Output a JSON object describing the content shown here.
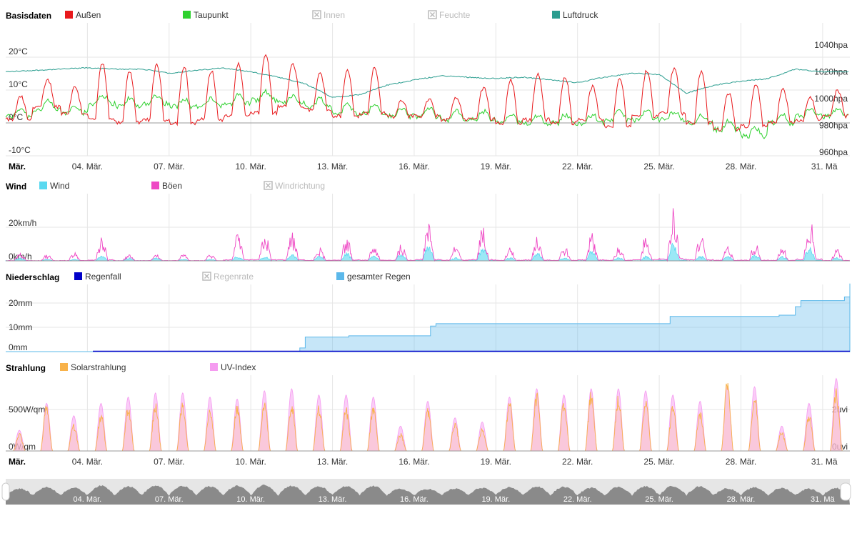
{
  "colors": {
    "aussen": "#e8191c",
    "taupunkt": "#2ed12e",
    "luftdruck": "#2a9d8f",
    "wind": "#5ad9f0",
    "boeen": "#ee47c4",
    "regenfall": "#0000c8",
    "gesamter_regen": "#5bb8ea",
    "solar": "#f8b24a",
    "uv": "#f59bf0",
    "disabled": "#bbbbbb",
    "grid": "#e6e6e6"
  },
  "x_axis": {
    "month_label": "Mär.",
    "dates": [
      "04. Mär.",
      "07. Mär.",
      "10. Mär.",
      "13. Mär.",
      "16. Mär.",
      "19. Mär.",
      "22. Mär.",
      "25. Mär.",
      "28. Mär.",
      "31. Mä"
    ]
  },
  "chart_data": [
    {
      "type": "line",
      "title": "Basisdaten",
      "legend": [
        {
          "name": "Außen",
          "color": "#e8191c",
          "enabled": true
        },
        {
          "name": "Taupunkt",
          "color": "#2ed12e",
          "enabled": true
        },
        {
          "name": "Innen",
          "color": "#bbbbbb",
          "enabled": false
        },
        {
          "name": "Feuchte",
          "color": "#bbbbbb",
          "enabled": false
        },
        {
          "name": "Luftdruck",
          "color": "#2a9d8f",
          "enabled": true
        }
      ],
      "y_ticks_left": [
        "20°C",
        "10°C",
        "0°C",
        "-10°C"
      ],
      "y_ticks_right": [
        "1040hpa",
        "1020hpa",
        "1000hpa",
        "980hpa",
        "960hpa"
      ],
      "ylim_temp": [
        -10,
        30
      ],
      "ylim_pressure": [
        960,
        1060
      ],
      "x_days": [
        1,
        32
      ],
      "series": [
        {
          "name": "Außen",
          "unit": "°C",
          "daily_max": [
            8,
            13,
            11,
            18,
            16,
            18,
            17,
            16,
            18,
            21,
            18,
            15,
            16,
            17,
            7,
            7,
            8,
            11,
            13,
            15,
            14,
            11,
            14,
            16,
            17,
            16,
            9,
            12,
            10,
            8,
            10
          ],
          "daily_min": [
            1,
            5,
            3,
            1,
            0,
            1,
            0,
            1,
            2,
            3,
            5,
            4,
            2,
            3,
            2,
            2,
            1,
            1,
            0,
            1,
            0,
            1,
            -1,
            2,
            3,
            0,
            -2,
            -1,
            0,
            1,
            2
          ]
        },
        {
          "name": "Taupunkt",
          "unit": "°C",
          "approx_level": [
            2,
            4,
            3,
            6,
            5,
            6,
            5,
            5,
            6,
            7,
            6,
            5,
            3,
            3,
            2,
            2,
            1,
            1,
            0,
            0,
            0,
            0,
            1,
            1,
            1,
            0,
            -2,
            -4,
            0,
            2,
            2
          ]
        },
        {
          "name": "Luftdruck",
          "unit": "hpa",
          "daily": [
            1020,
            1021,
            1022,
            1023,
            1022,
            1022,
            1019,
            1021,
            1023,
            1020,
            1016,
            1011,
            1001,
            1003,
            1010,
            1014,
            1017,
            1016,
            1015,
            1016,
            1014,
            1012,
            1016,
            1019,
            1018,
            1004,
            1010,
            1013,
            1015,
            1022,
            1020
          ]
        }
      ]
    },
    {
      "type": "area",
      "title": "Wind",
      "legend": [
        {
          "name": "Wind",
          "color": "#5ad9f0",
          "enabled": true
        },
        {
          "name": "Böen",
          "color": "#ee47c4",
          "enabled": true
        },
        {
          "name": "Windrichtung",
          "color": "#bbbbbb",
          "enabled": false
        }
      ],
      "y_ticks_left": [
        "20km/h",
        "0km/h"
      ],
      "ylim": [
        0,
        32
      ],
      "series": [
        {
          "name": "Wind",
          "unit": "km/h",
          "daily_peak": [
            2,
            1,
            1,
            3,
            2,
            2,
            1,
            1,
            3,
            3,
            4,
            3,
            5,
            3,
            5,
            9,
            2,
            8,
            2,
            5,
            2,
            6,
            2,
            3,
            11,
            3,
            3,
            4,
            3,
            9,
            2
          ]
        },
        {
          "name": "Böen",
          "unit": "km/h",
          "daily_peak": [
            5,
            4,
            5,
            16,
            4,
            4,
            4,
            4,
            16,
            17,
            17,
            8,
            14,
            10,
            10,
            23,
            10,
            21,
            8,
            16,
            9,
            17,
            9,
            16,
            34,
            16,
            9,
            11,
            8,
            28,
            7
          ]
        }
      ]
    },
    {
      "type": "area",
      "title": "Niederschlag",
      "legend": [
        {
          "name": "Regenfall",
          "color": "#0000c8",
          "enabled": true
        },
        {
          "name": "Regenrate",
          "color": "#bbbbbb",
          "enabled": false
        },
        {
          "name": "gesamter Regen",
          "color": "#5bb8ea",
          "enabled": true
        }
      ],
      "y_ticks_left": [
        "20mm",
        "10mm",
        "0mm"
      ],
      "ylim": [
        0,
        28
      ],
      "series": [
        {
          "name": "gesamter Regen",
          "unit": "mm",
          "x": [
            1,
            11.6,
            11.8,
            12,
            13.6,
            15,
            16.6,
            16.8,
            25.2,
            25.4,
            29.4,
            30,
            30.2,
            31.8,
            32
          ],
          "values": [
            0,
            0,
            1.5,
            6,
            6.5,
            6.5,
            10.5,
            11.5,
            11.5,
            14.5,
            15,
            18.5,
            21,
            22.5,
            28
          ]
        },
        {
          "name": "Regenfall",
          "unit": "mm",
          "values_note": "near zero"
        }
      ]
    },
    {
      "type": "area",
      "title": "Strahlung",
      "legend": [
        {
          "name": "Solarstrahlung",
          "color": "#f8b24a",
          "enabled": true
        },
        {
          "name": "UV-Index",
          "color": "#f59bf0",
          "enabled": true
        }
      ],
      "y_ticks_left": [
        "500W/qm",
        "0W/qm"
      ],
      "y_ticks_right": [
        "2uvi",
        "0uvi"
      ],
      "ylim": [
        0,
        1000
      ],
      "series": [
        {
          "name": "Solarstrahlung",
          "unit": "W/qm",
          "daily_peak": [
            220,
            560,
            330,
            470,
            570,
            600,
            600,
            570,
            560,
            640,
            600,
            560,
            540,
            560,
            220,
            540,
            360,
            290,
            620,
            720,
            640,
            730,
            700,
            650,
            560,
            500,
            880,
            720,
            240,
            460,
            760
          ]
        },
        {
          "name": "UV-Index",
          "unit": "uvi",
          "daily_peak": [
            1,
            2.3,
            1.7,
            2.3,
            2.6,
            2.8,
            2.8,
            2.6,
            2.5,
            2.9,
            3,
            2.7,
            2.7,
            2.6,
            1.2,
            2.4,
            1.6,
            1.4,
            2.6,
            3,
            2.7,
            3,
            3,
            2.9,
            2.7,
            2.4,
            3.1,
            3.1,
            1.2,
            2.3,
            3.5
          ]
        }
      ]
    }
  ]
}
